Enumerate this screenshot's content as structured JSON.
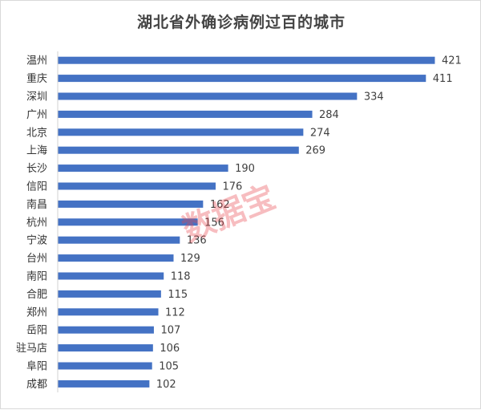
{
  "chart_data": {
    "type": "bar",
    "orientation": "horizontal",
    "title": "湖北省外确诊病例过百的城市",
    "categories": [
      "温州",
      "重庆",
      "深圳",
      "广州",
      "北京",
      "上海",
      "长沙",
      "信阳",
      "南昌",
      "杭州",
      "宁波",
      "台州",
      "南阳",
      "合肥",
      "郑州",
      "岳阳",
      "驻马店",
      "阜阳",
      "成都"
    ],
    "values": [
      421,
      411,
      334,
      284,
      274,
      269,
      190,
      176,
      162,
      156,
      136,
      129,
      118,
      115,
      112,
      107,
      106,
      105,
      102
    ],
    "xlim": [
      0,
      430
    ],
    "color": "#4472c4",
    "grid": false,
    "legend": "none",
    "data_labels": true
  },
  "watermark": {
    "text": "数据宝",
    "color": "#e8434b"
  }
}
